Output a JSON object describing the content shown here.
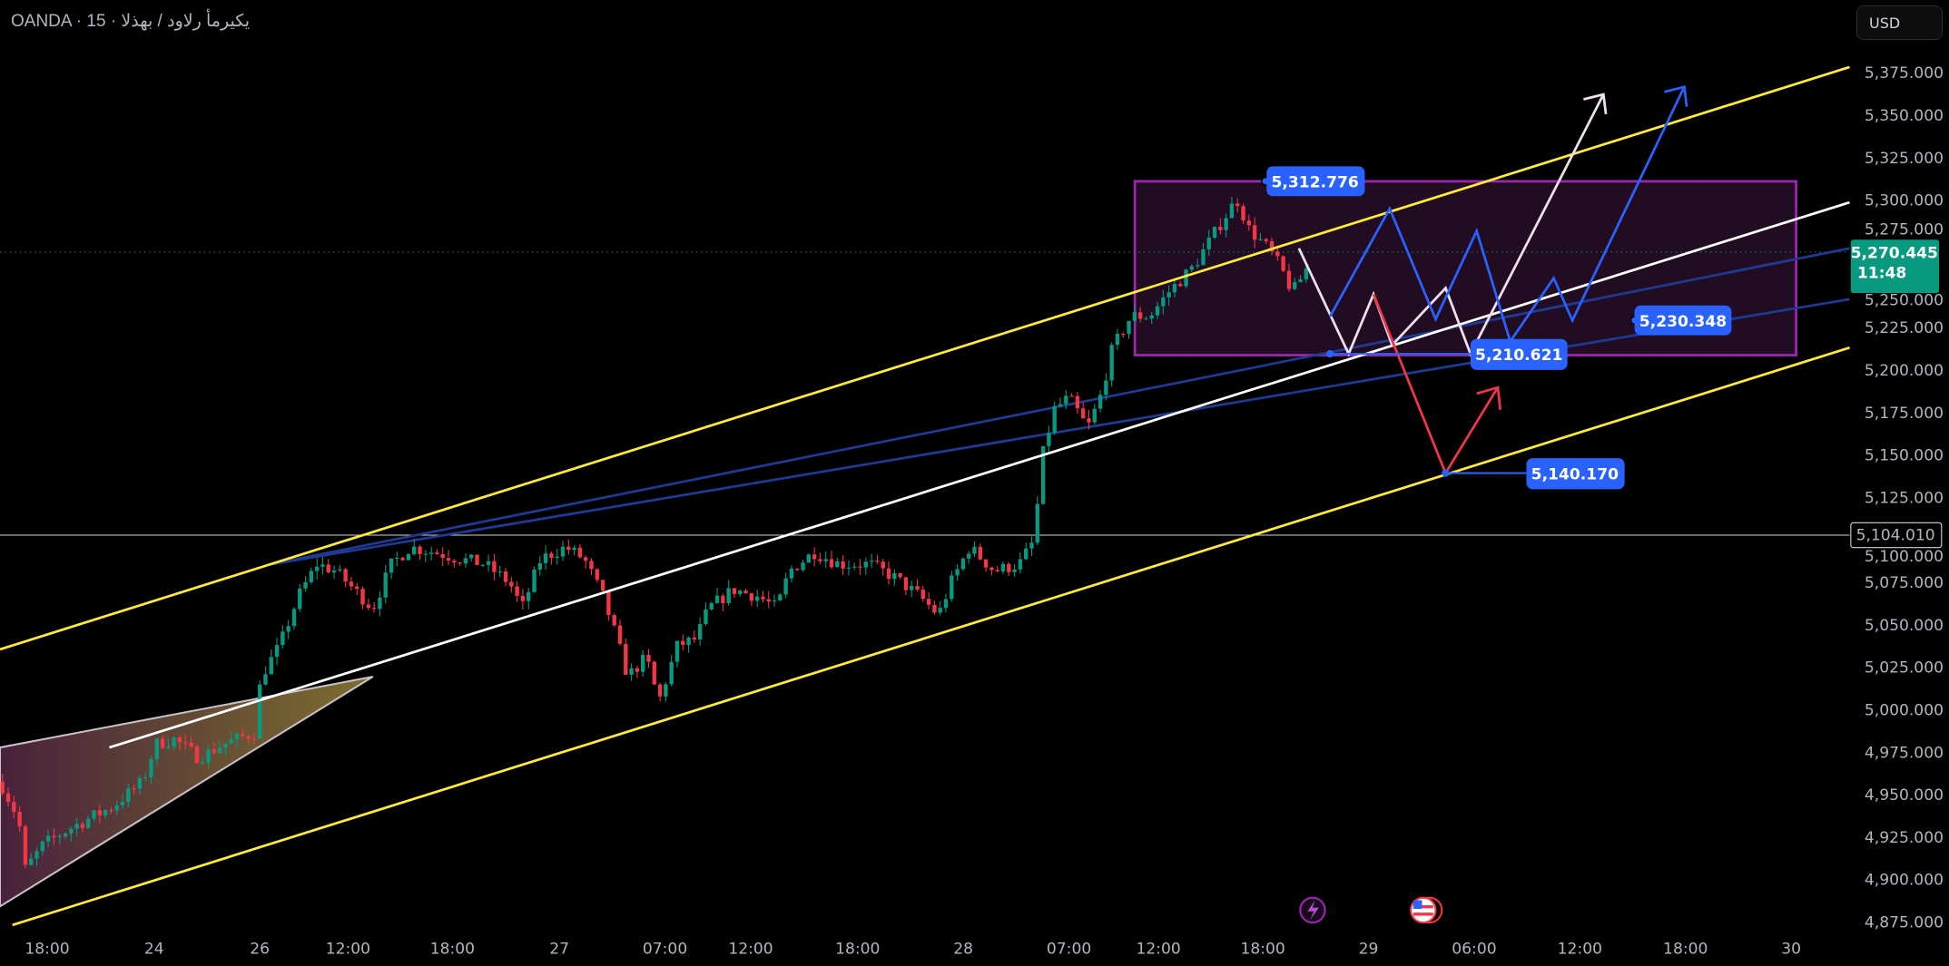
{
  "header": {
    "title": "OANDA · 15 · يكيرمأ رلاود / بهذلا",
    "currency_button": "USD"
  },
  "colors": {
    "background": "#000000",
    "up": "#089981",
    "down": "#f23645",
    "channel": "#ffeb3b",
    "midline": "#ffffff",
    "trendline": "#1f3a93",
    "box": "#9c27b0",
    "label": "#2962ff",
    "bear_path": "#f23645"
  },
  "chart_data": {
    "type": "candlestick",
    "symbol": "OANDA · 15",
    "y_ticks": [
      "5,375.000",
      "5,350.000",
      "5,325.000",
      "5,300.000",
      "5,275.000",
      "5,250.000",
      "5,225.000",
      "5,200.000",
      "5,175.000",
      "5,150.000",
      "5,125.000",
      "5,100.000",
      "5,075.000",
      "5,050.000",
      "5,025.000",
      "5,000.000",
      "4,975.000",
      "4,950.000",
      "4,925.000",
      "4,900.000",
      "4,875.000"
    ],
    "ylim": [
      4875,
      5380
    ],
    "x_ticks": [
      "18:00",
      "24",
      "26",
      "12:00",
      "18:00",
      "27",
      "07:00",
      "12:00",
      "18:00",
      "28",
      "07:00",
      "12:00",
      "18:00",
      "29",
      "06:00",
      "12:00",
      "18:00",
      "30"
    ],
    "last_price": {
      "value": "5,270.445",
      "countdown": "11:48",
      "price": 5270.445
    },
    "horizontal_line": {
      "label": "5,104.010",
      "price": 5104.01
    },
    "annotations": [
      {
        "label": "5,312.776",
        "price": 5312.776
      },
      {
        "label": "5,230.348",
        "price": 5230.348
      },
      {
        "label": "5,210.621",
        "price": 5210.621
      },
      {
        "label": "5,140.170",
        "price": 5140.17
      }
    ]
  },
  "events": [
    {
      "icon": "lightning-icon"
    },
    {
      "icon": "us-flag-icon"
    }
  ]
}
